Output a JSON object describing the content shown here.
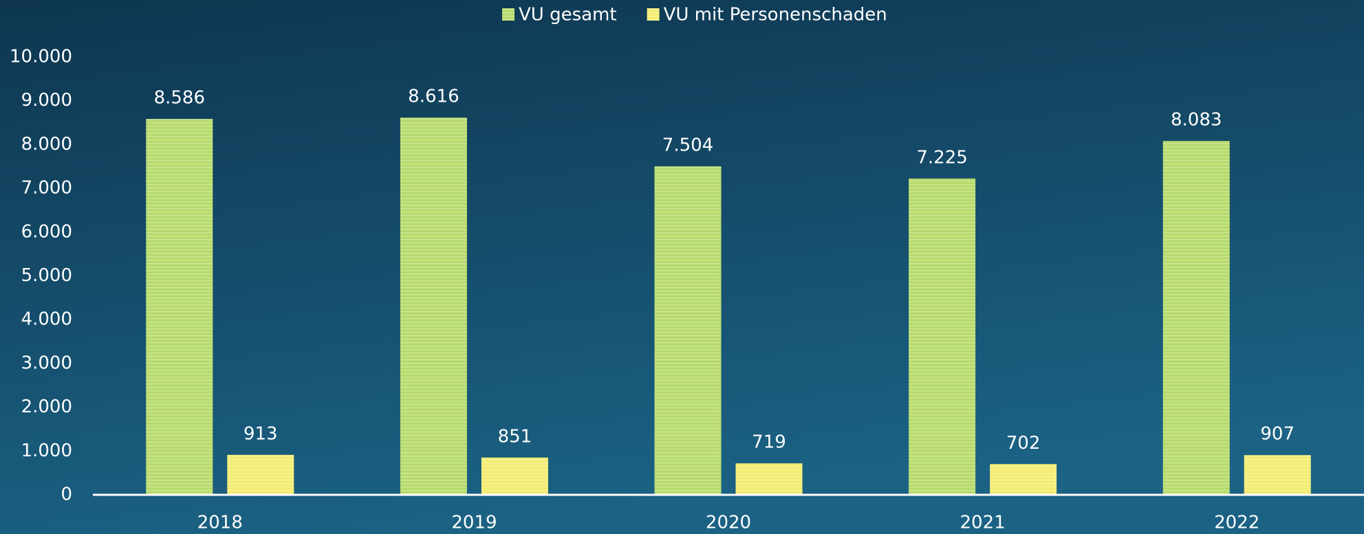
{
  "chart_data": {
    "type": "bar",
    "categories": [
      "2018",
      "2019",
      "2020",
      "2021",
      "2022"
    ],
    "series": [
      {
        "name": "VU gesamt",
        "color": "#b7db6c",
        "values": [
          8586,
          8616,
          7504,
          7225,
          8083
        ],
        "value_labels": [
          "8.586",
          "8.616",
          "7.504",
          "7.225",
          "8.083"
        ]
      },
      {
        "name": "VU mit Personenschaden",
        "color": "#f4ec72",
        "values": [
          913,
          851,
          719,
          702,
          907
        ],
        "value_labels": [
          "913",
          "851",
          "719",
          "702",
          "907"
        ]
      }
    ],
    "ylim": [
      0,
      10000
    ],
    "yticks": [
      0,
      {
        "value": 1000,
        "label": "1.000"
      },
      {
        "value": 2000,
        "label": "2.000"
      },
      {
        "value": 3000,
        "label": "3.000"
      },
      {
        "value": 4000,
        "label": "4.000"
      },
      {
        "value": 5000,
        "label": "5.000"
      },
      {
        "value": 6000,
        "label": "6.000"
      },
      {
        "value": 7000,
        "label": "7.000"
      },
      {
        "value": 8000,
        "label": "8.000"
      },
      {
        "value": 9000,
        "label": "9.000"
      },
      {
        "value": 10000,
        "label": "10.000"
      }
    ],
    "legend": "top"
  }
}
